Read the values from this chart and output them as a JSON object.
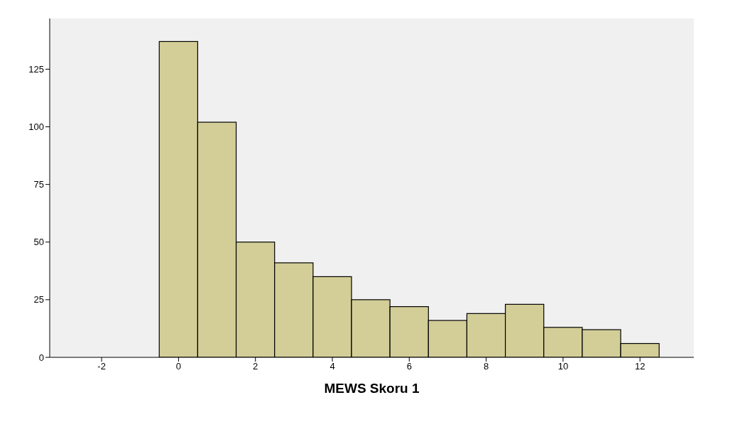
{
  "chart_data": {
    "type": "histogram",
    "xlabel": "MEWS Skoru 1",
    "bins": [
      -0.5,
      0.5,
      1.5,
      2.5,
      3.5,
      4.5,
      5.5,
      6.5,
      7.5,
      8.5,
      9.5,
      10.5,
      11.5,
      12.5
    ],
    "values": [
      137,
      102,
      50,
      41,
      35,
      25,
      22,
      16,
      19,
      23,
      13,
      12,
      6
    ],
    "color": "#d3ce97",
    "xlim": [
      -3.35,
      13.4
    ],
    "xticks": [
      -2,
      0,
      2,
      4,
      6,
      8,
      10,
      12
    ],
    "ylim": [
      0,
      147
    ],
    "yticks": [
      0,
      25,
      50,
      75,
      100,
      125
    ]
  }
}
